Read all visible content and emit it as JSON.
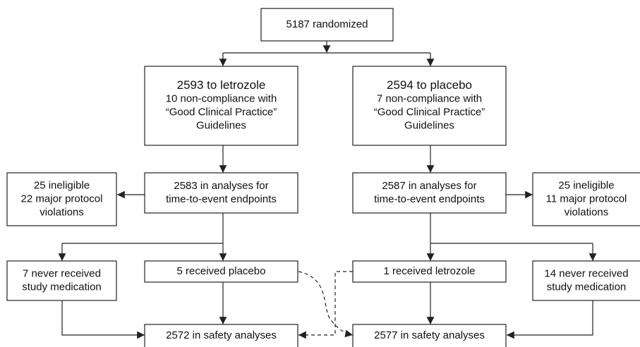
{
  "nodes": [
    {
      "lines": [
        "5187 randomized"
      ]
    },
    {
      "lines": [
        "2593 to letrozole",
        "10 non-compliance with",
        "“Good Clinical Practice”",
        "Guidelines"
      ]
    },
    {
      "lines": [
        "2594 to placebo",
        "7 non-compliance with",
        "“Good Clinical Practice”",
        "Guidelines"
      ]
    },
    {
      "lines": [
        "2583 in analyses for",
        "time-to-event endpoints"
      ]
    },
    {
      "lines": [
        "2587 in analyses for",
        "time-to-event endpoints"
      ]
    },
    {
      "lines": [
        "25 ineligible",
        "22 major protocol",
        "violations"
      ]
    },
    {
      "lines": [
        "25 ineligible",
        "11 major protocol",
        "violations"
      ]
    },
    {
      "lines": [
        "7 never received",
        "study medication"
      ]
    },
    {
      "lines": [
        "5 received placebo"
      ]
    },
    {
      "lines": [
        "1 received letrozole"
      ]
    },
    {
      "lines": [
        "14 never received",
        "study medication"
      ]
    },
    {
      "lines": [
        "2572 in safety analyses"
      ]
    },
    {
      "lines": [
        "2577 in safety analyses"
      ]
    }
  ]
}
